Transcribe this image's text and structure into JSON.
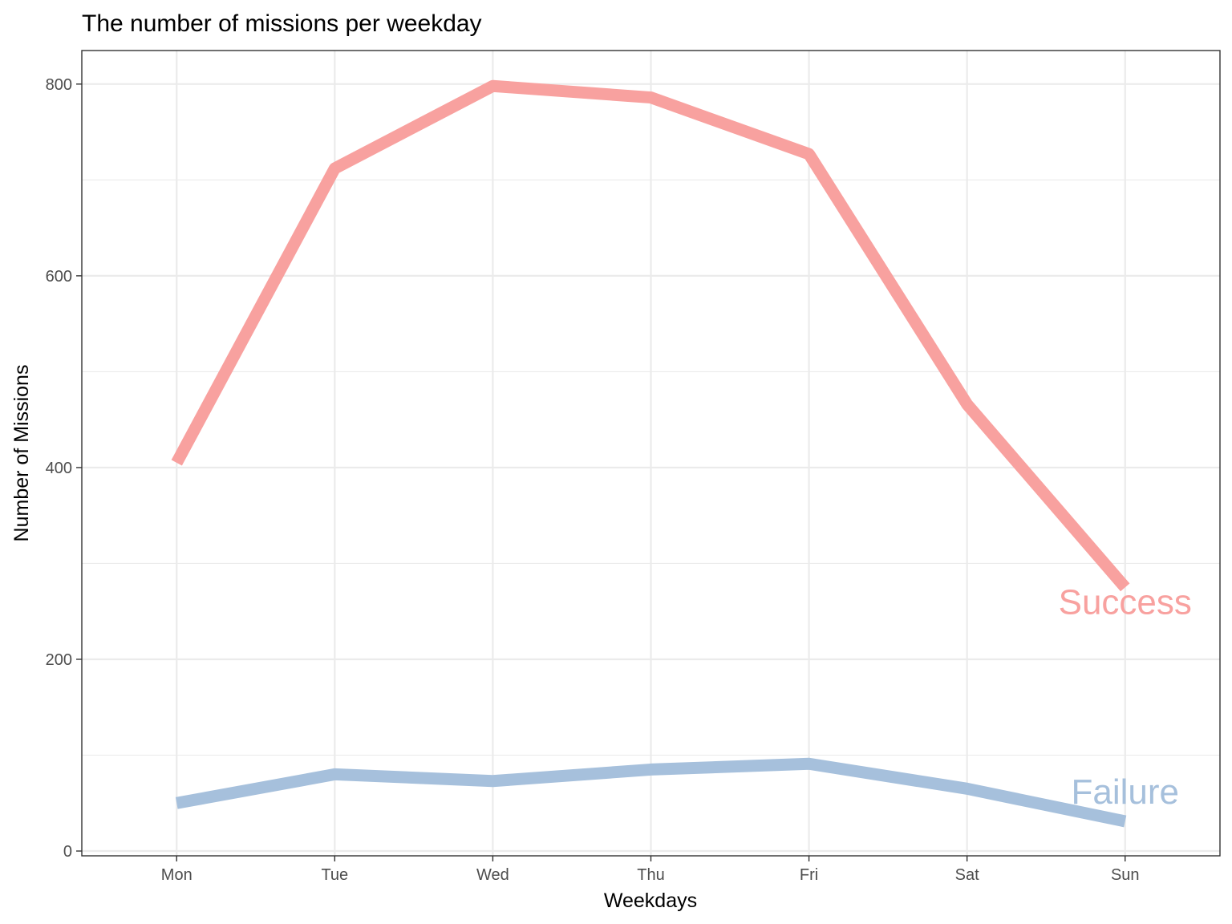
{
  "chart_data": {
    "type": "line",
    "title": "The number of missions per weekday",
    "xlabel": "Weekdays",
    "ylabel": "Number of Missions",
    "categories": [
      "Mon",
      "Tue",
      "Wed",
      "Thu",
      "Fri",
      "Sat",
      "Sun"
    ],
    "ylim": [
      -5,
      835
    ],
    "yticks": [
      0,
      200,
      400,
      600,
      800
    ],
    "yticklabels": [
      "0",
      "200",
      "400",
      "600",
      "800"
    ],
    "grid": true,
    "series": [
      {
        "name": "Success",
        "color": "#f8a19f",
        "values": [
          405,
          712,
          798,
          786,
          727,
          466,
          275
        ]
      },
      {
        "name": "Failure",
        "color": "#a6c0dc",
        "values": [
          50,
          80,
          73,
          85,
          91,
          65,
          31
        ]
      }
    ],
    "annotations": [
      {
        "text": "Success",
        "series": "Success",
        "x": "Sun",
        "y": 260
      },
      {
        "text": "Failure",
        "series": "Failure",
        "x": "Sun",
        "y": 62
      }
    ]
  }
}
